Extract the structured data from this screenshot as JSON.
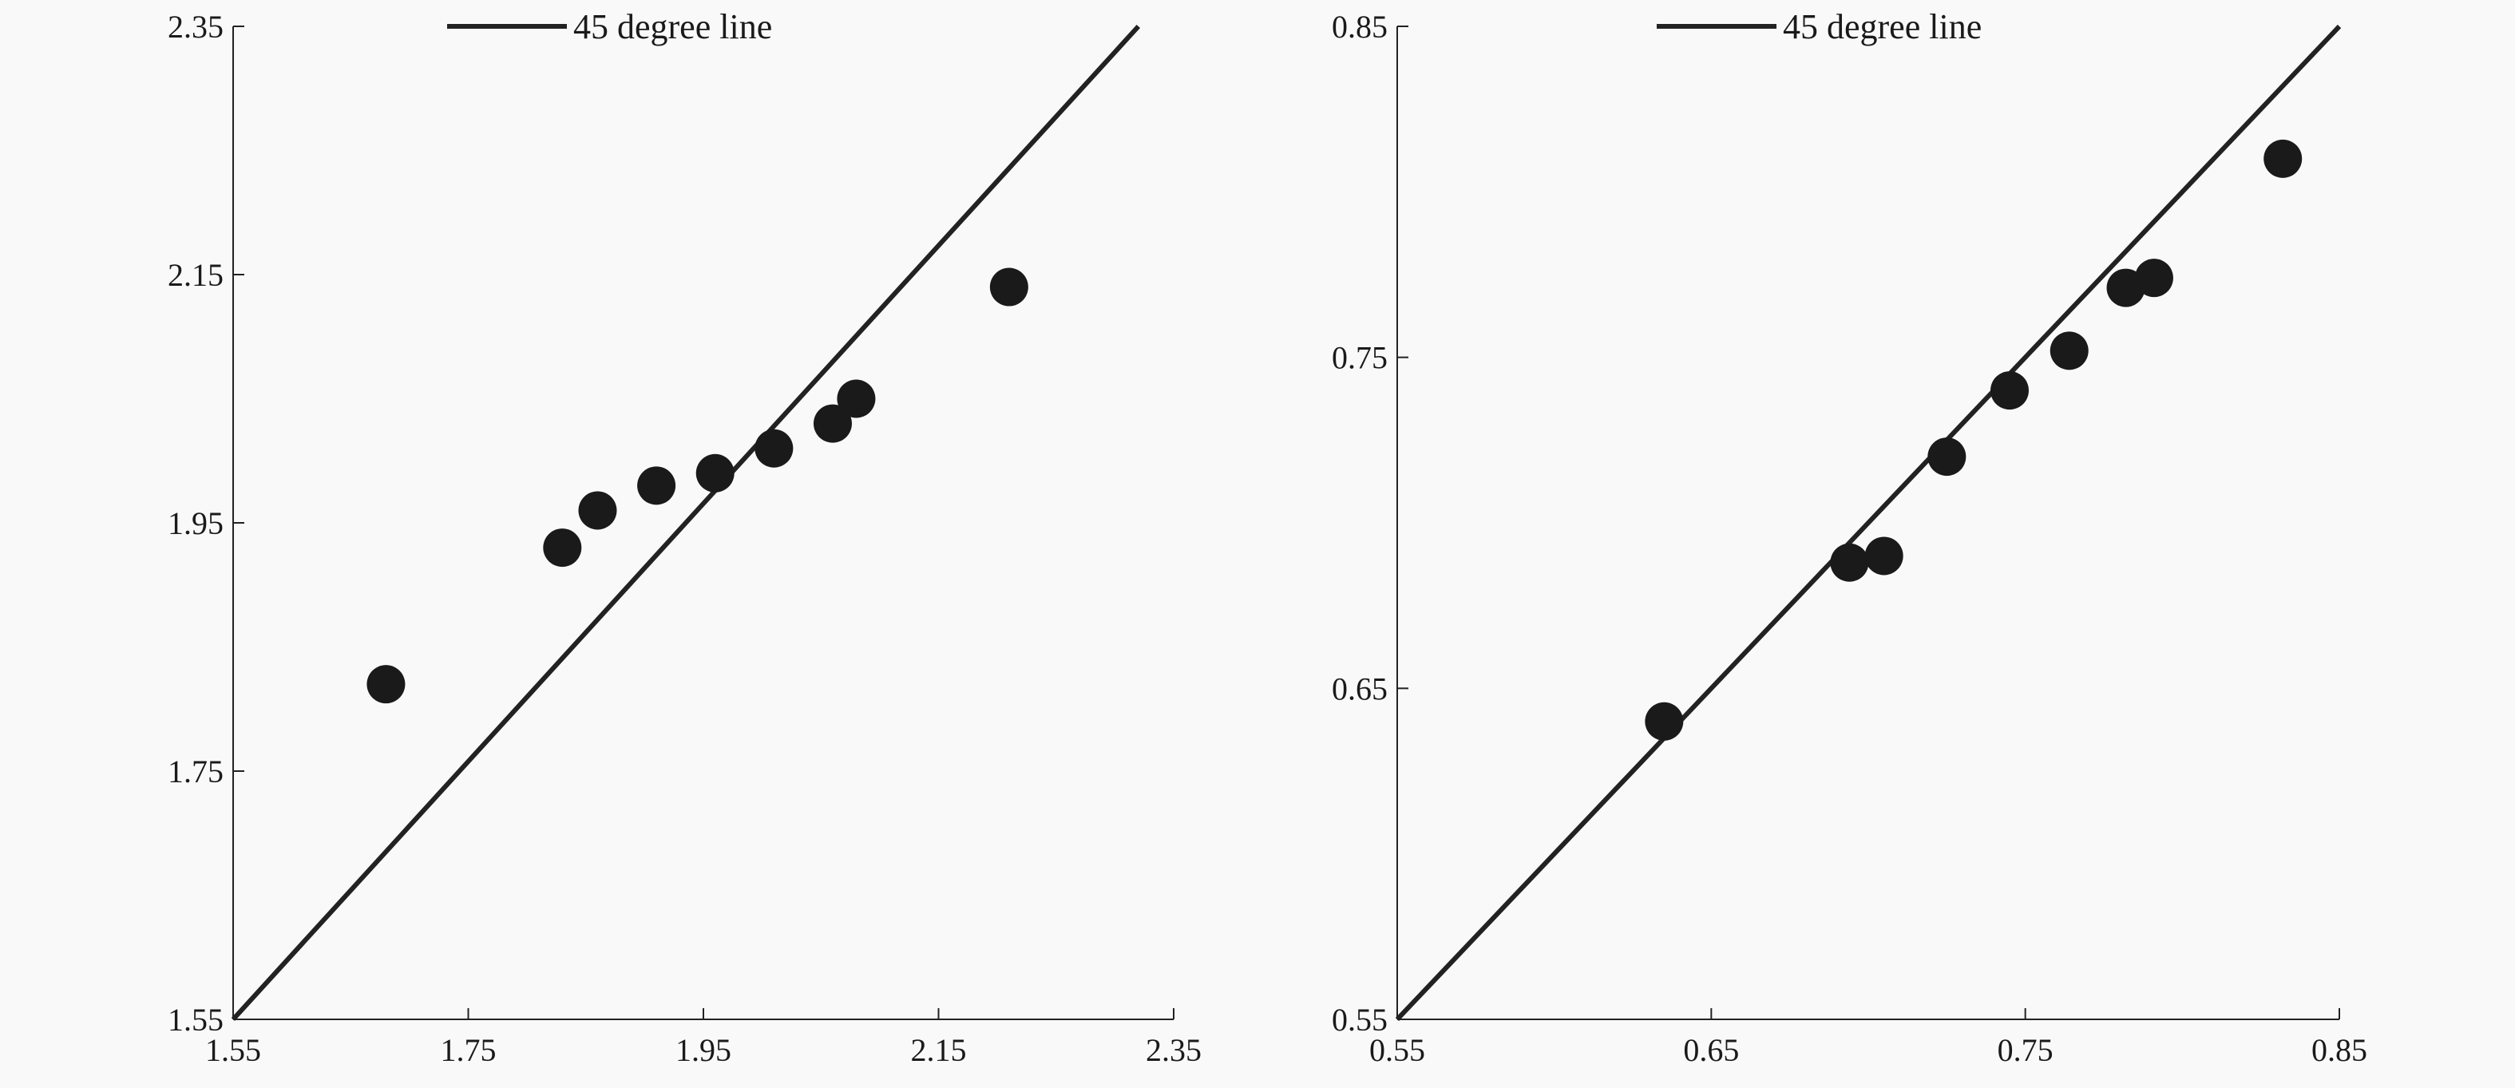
{
  "chart_data": [
    {
      "type": "scatter",
      "title": "",
      "xlabel": "",
      "ylabel": "",
      "xlim": [
        1.55,
        2.35
      ],
      "ylim": [
        1.55,
        2.35
      ],
      "xticks": [
        "1.55",
        "1.75",
        "1.95",
        "2.15",
        "2.35"
      ],
      "yticks": [
        "1.55",
        "1.75",
        "1.95",
        "2.15",
        "2.35"
      ],
      "legend": {
        "placement": "top",
        "entries": [
          "45 degree line"
        ]
      },
      "reference_line": {
        "label": "45 degree line",
        "from": [
          1.55,
          1.55
        ],
        "to": [
          2.32,
          2.35
        ]
      },
      "points": [
        {
          "x": 1.68,
          "y": 1.82
        },
        {
          "x": 1.83,
          "y": 1.93
        },
        {
          "x": 1.86,
          "y": 1.96
        },
        {
          "x": 1.91,
          "y": 1.98
        },
        {
          "x": 1.96,
          "y": 1.99
        },
        {
          "x": 2.01,
          "y": 2.01
        },
        {
          "x": 2.06,
          "y": 2.03
        },
        {
          "x": 2.08,
          "y": 2.05
        },
        {
          "x": 2.21,
          "y": 2.14
        }
      ]
    },
    {
      "type": "scatter",
      "title": "",
      "xlabel": "",
      "ylabel": "",
      "xlim": [
        0.55,
        0.85
      ],
      "ylim": [
        0.55,
        0.85
      ],
      "xticks": [
        "0.55",
        "0.65",
        "0.75",
        "0.85"
      ],
      "yticks": [
        "0.55",
        "0.65",
        "0.75",
        "0.85"
      ],
      "legend": {
        "placement": "top",
        "entries": [
          "45 degree line"
        ]
      },
      "reference_line": {
        "label": "45 degree line",
        "from": [
          0.55,
          0.55
        ],
        "to": [
          0.85,
          0.85
        ]
      },
      "points": [
        {
          "x": 0.635,
          "y": 0.64
        },
        {
          "x": 0.694,
          "y": 0.688
        },
        {
          "x": 0.705,
          "y": 0.69
        },
        {
          "x": 0.725,
          "y": 0.72
        },
        {
          "x": 0.745,
          "y": 0.74
        },
        {
          "x": 0.764,
          "y": 0.752
        },
        {
          "x": 0.782,
          "y": 0.771
        },
        {
          "x": 0.791,
          "y": 0.774
        },
        {
          "x": 0.832,
          "y": 0.81
        }
      ]
    }
  ]
}
